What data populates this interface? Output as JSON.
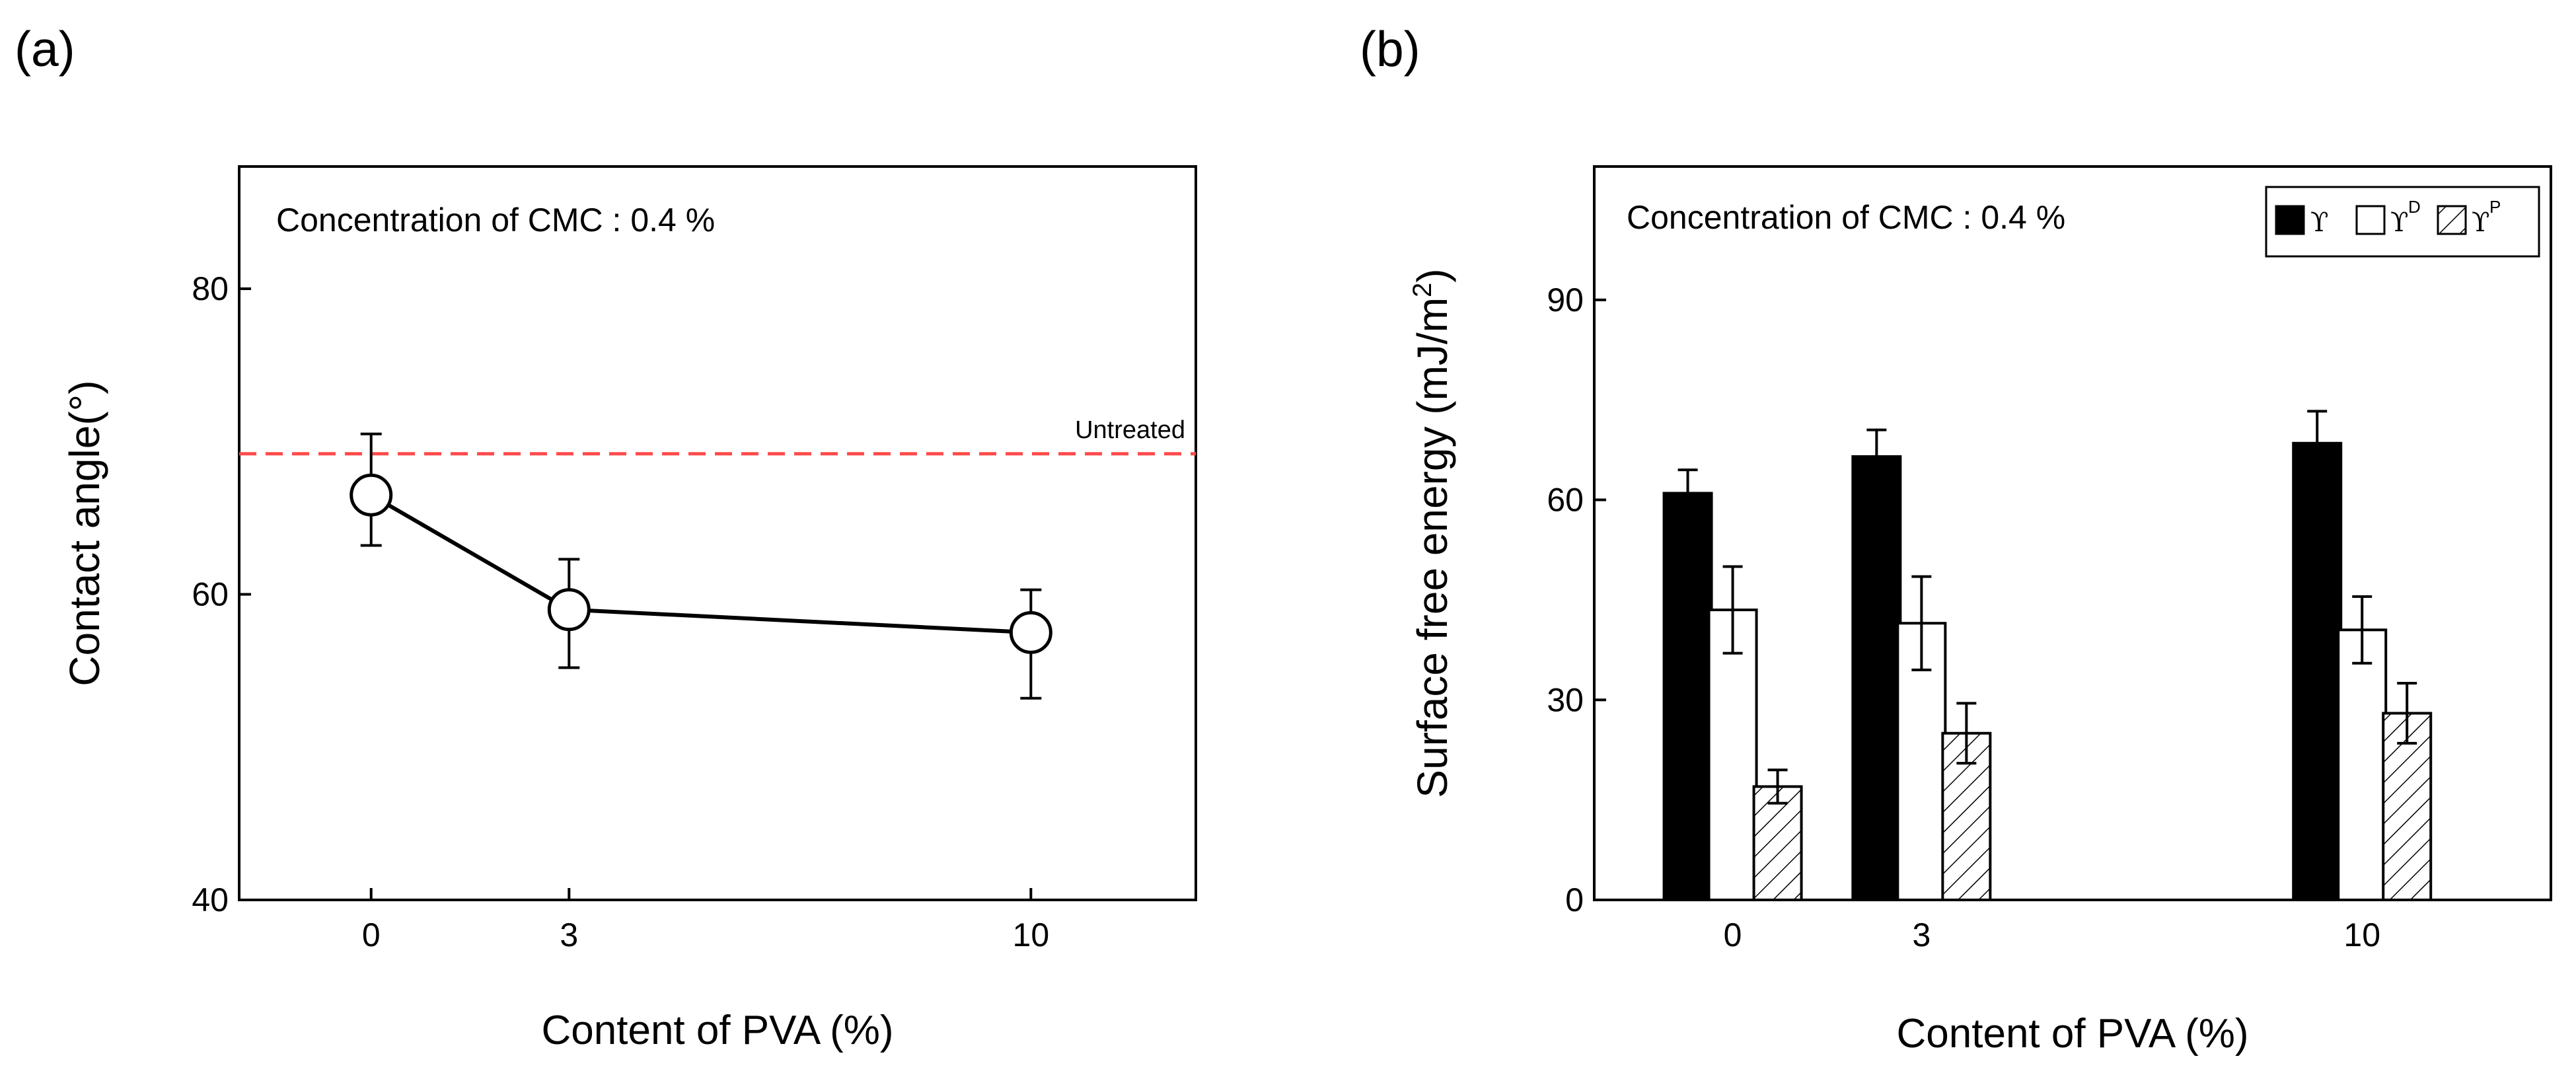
{
  "chart_data": [
    {
      "panel": "(a)",
      "type": "line",
      "title": "",
      "annotation": "Concentration of CMC : 0.4 %",
      "xlabel": "Content of PVA (%)",
      "ylabel": "Contact angle(°)",
      "x": [
        0,
        3,
        10
      ],
      "y": [
        66.5,
        59.0,
        57.5
      ],
      "err_upper": [
        70.5,
        62.3,
        60.3
      ],
      "err_lower": [
        63.2,
        55.2,
        53.2
      ],
      "xticks": [
        0,
        3,
        10
      ],
      "xtick_labels": [
        "0",
        "3",
        "10"
      ],
      "yticks": [
        40,
        60,
        80
      ],
      "ytick_labels": [
        "40",
        "60",
        "80"
      ],
      "xlim": [
        -2,
        12.5
      ],
      "ylim": [
        40,
        88
      ],
      "reference_line": {
        "label": "Untreated",
        "value": 69.2,
        "color": "#ff4b4b"
      },
      "marker": "open-circle",
      "line_color": "#000000"
    },
    {
      "panel": "(b)",
      "type": "bar",
      "title": "",
      "annotation": "Concentration of CMC : 0.4 %",
      "xlabel": "Content of PVA (%)",
      "ylabel_main": "Surface free energy (mJ/m",
      "ylabel_sup": "2",
      "ylabel_close": ")",
      "categories": [
        "0",
        "3",
        "10"
      ],
      "x": [
        0,
        3,
        10
      ],
      "series": [
        {
          "name": "ϒ",
          "sup": "",
          "fill": "solid",
          "color": "#000000",
          "values": [
            61,
            66.5,
            68.5
          ],
          "err": [
            3.5,
            4,
            4.8
          ]
        },
        {
          "name": "ϒ",
          "sup": "D",
          "fill": "open",
          "color": "#ffffff",
          "values": [
            43.5,
            41.5,
            40.5
          ],
          "err": [
            6.5,
            7,
            5
          ]
        },
        {
          "name": "ϒ",
          "sup": "P",
          "fill": "hatch",
          "color": "#ffffff",
          "values": [
            17,
            25,
            28
          ],
          "err": [
            2.5,
            4.5,
            4.5
          ]
        }
      ],
      "yticks": [
        0,
        30,
        60,
        90
      ],
      "ytick_labels": [
        "0",
        "30",
        "60",
        "90"
      ],
      "ylim": [
        0,
        110
      ],
      "xlim": [
        -2.2,
        13
      ],
      "legend_position": "top-right"
    }
  ]
}
